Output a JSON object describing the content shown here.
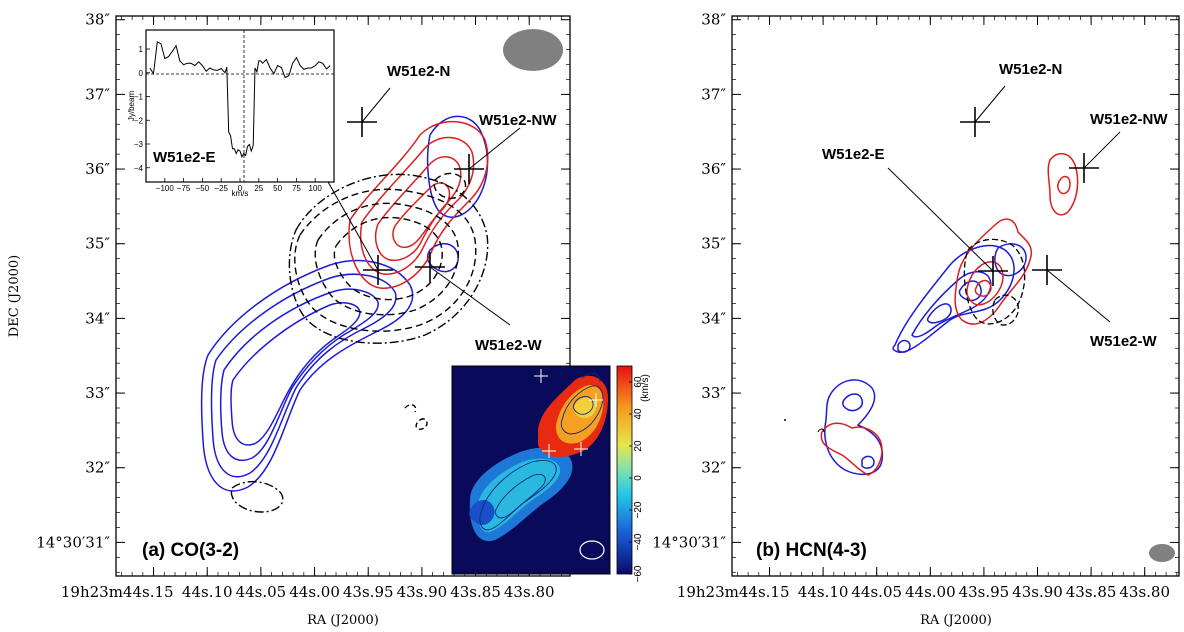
{
  "chart_data": [
    {
      "type": "contour",
      "panel_label": "(a) CO(3-2)",
      "xlabel": "RA (J2000)",
      "ylabel": "DEC (J2000)",
      "x_tick_labels": [
        "19h23m44s.15",
        "44s.10",
        "44s.05",
        "44s.00",
        "43s.95",
        "43s.90",
        "43s.85",
        "43s.80"
      ],
      "x_ticks_sec": [
        44.15,
        44.1,
        44.05,
        44.0,
        43.95,
        43.9,
        43.85,
        43.8
      ],
      "y_tick_labels": [
        "14°30′31″",
        "32″",
        "33″",
        "34″",
        "35″",
        "36″",
        "37″",
        "38″"
      ],
      "y_ticks_arcsec": [
        31,
        32,
        33,
        34,
        35,
        36,
        37,
        38
      ],
      "sources": [
        {
          "name": "W51e2-N",
          "ra_sec": 43.947,
          "dec_arcsec": 36.58
        },
        {
          "name": "W51e2-NW",
          "ra_sec": 43.882,
          "dec_arcsec": 35.95
        },
        {
          "name": "W51e2-E",
          "ra_sec": 43.958,
          "dec_arcsec": 34.55
        },
        {
          "name": "W51e2-W",
          "ra_sec": 43.905,
          "dec_arcsec": 34.6
        }
      ],
      "contours": {
        "blue": "blueshifted emission",
        "red": "redshifted emission",
        "black": "absorption"
      },
      "inset_spectrum": {
        "label": "W51e2-E",
        "ylabel": "Jy/beam",
        "xlabel": "km/s",
        "x_tick_labels": [
          "−100",
          "−75",
          "−50",
          "−25",
          "0",
          "25",
          "50",
          "75",
          "100"
        ],
        "y_tick_labels": [
          "1",
          "0",
          "−1",
          "−2",
          "−3",
          "−4"
        ],
        "x": [
          -120,
          -110,
          -100,
          -90,
          -80,
          -70,
          -60,
          -50,
          -40,
          -30,
          -20,
          -15,
          -10,
          -5,
          0,
          5,
          10,
          15,
          20,
          25,
          30,
          40,
          50,
          60,
          70,
          80,
          90,
          100,
          110,
          120
        ],
        "y": [
          0.2,
          1.3,
          0.6,
          0.9,
          0.5,
          0.4,
          0.3,
          0.3,
          0.2,
          0.1,
          0.0,
          -2.5,
          -3.2,
          -3.4,
          -3.3,
          -3.4,
          -3.1,
          -3.3,
          0.2,
          0.5,
          0.4,
          0.2,
          0.3,
          -0.2,
          0.4,
          0.3,
          0.2,
          0.3,
          0.4,
          0.3
        ]
      },
      "inset_velocity_map": {
        "colorbar_title": "(km/s)",
        "colorbar_tick_labels": [
          "60",
          "40",
          "20",
          "0",
          "−20",
          "−40",
          "−60"
        ],
        "colorbar_range": [
          -60,
          70
        ]
      }
    },
    {
      "type": "contour",
      "panel_label": "(b) HCN(4-3)",
      "xlabel": "RA (J2000)",
      "ylabel": "",
      "x_tick_labels": [
        "19h23m44s.15",
        "44s.10",
        "44s.05",
        "44s.00",
        "43s.95",
        "43s.90",
        "43s.85",
        "43s.80"
      ],
      "x_ticks_sec": [
        44.15,
        44.1,
        44.05,
        44.0,
        43.95,
        43.9,
        43.85,
        43.8
      ],
      "y_tick_labels": [
        "14°30′31″",
        "32″",
        "33″",
        "34″",
        "35″",
        "36″",
        "37″",
        "38″"
      ],
      "y_ticks_arcsec": [
        31,
        32,
        33,
        34,
        35,
        36,
        37,
        38
      ],
      "sources": [
        {
          "name": "W51e2-N",
          "ra_sec": 43.947,
          "dec_arcsec": 36.58
        },
        {
          "name": "W51e2-NW",
          "ra_sec": 43.882,
          "dec_arcsec": 35.95
        },
        {
          "name": "W51e2-E",
          "ra_sec": 43.958,
          "dec_arcsec": 34.55
        },
        {
          "name": "W51e2-W",
          "ra_sec": 43.905,
          "dec_arcsec": 34.6
        }
      ]
    }
  ]
}
